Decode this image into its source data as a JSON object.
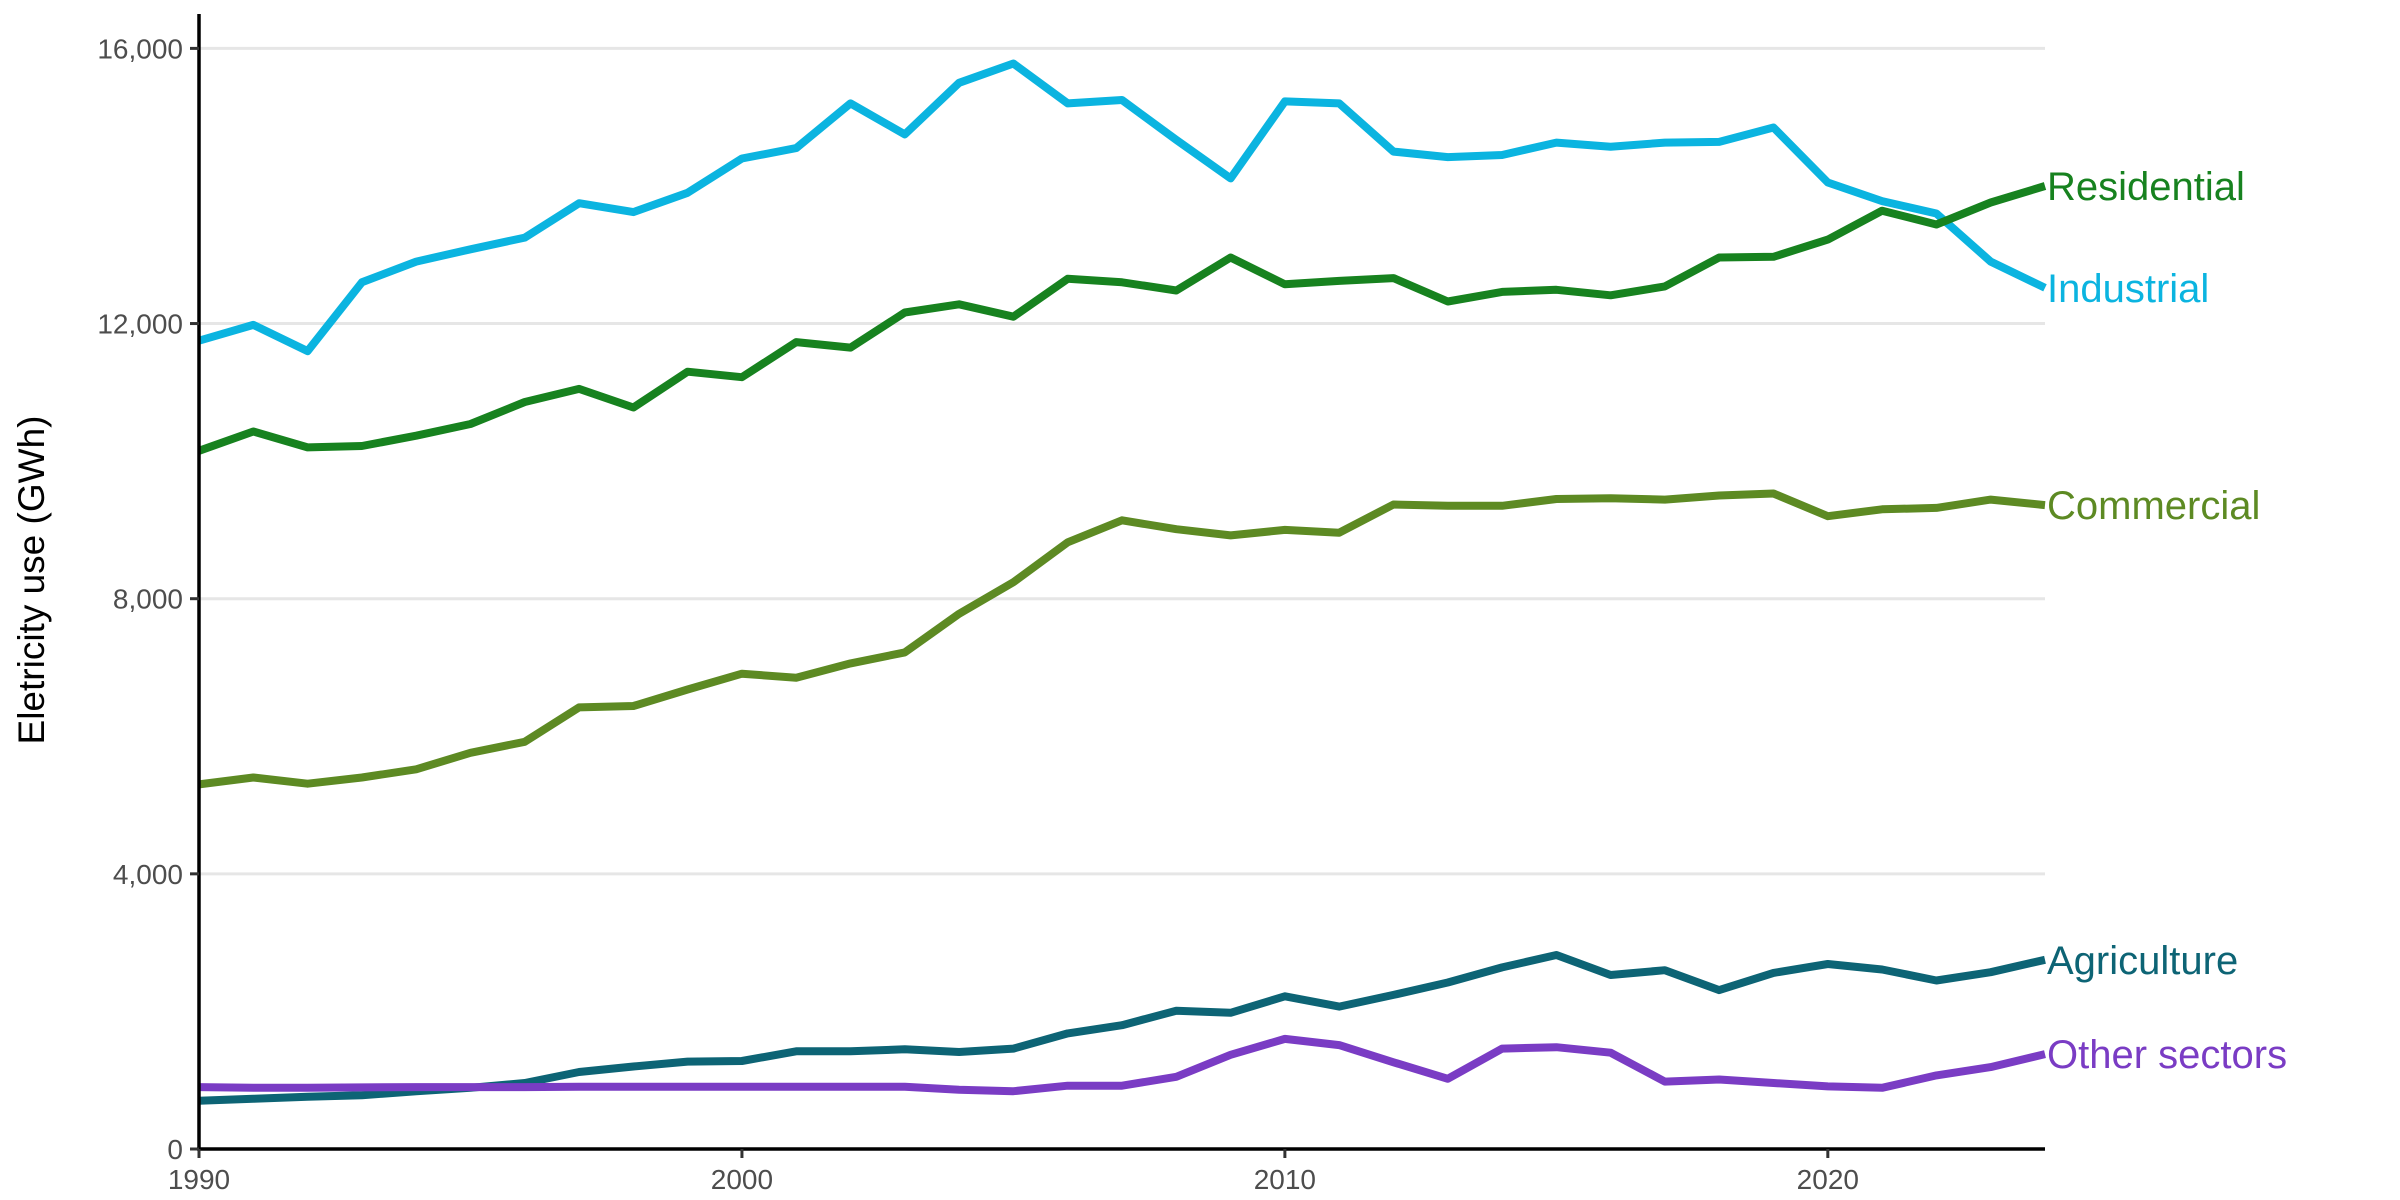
{
  "chart_data": {
    "type": "line",
    "title": "",
    "xlabel": "",
    "ylabel": "Eletricity use (GWh)",
    "xlim": [
      1990,
      2024
    ],
    "ylim": [
      0,
      16500
    ],
    "grid": true,
    "legend": "direct-labels-right",
    "x_ticks": [
      {
        "value": 1990,
        "label": "1990"
      },
      {
        "value": 2000,
        "label": "2000"
      },
      {
        "value": 2010,
        "label": "2010"
      },
      {
        "value": 2020,
        "label": "2020"
      }
    ],
    "y_ticks": [
      {
        "value": 0,
        "label": "0"
      },
      {
        "value": 4000,
        "label": "4,000"
      },
      {
        "value": 8000,
        "label": "8,000"
      },
      {
        "value": 12000,
        "label": "12,000"
      },
      {
        "value": 16000,
        "label": "16,000"
      }
    ],
    "x": [
      1990,
      1991,
      1992,
      1993,
      1994,
      1995,
      1996,
      1997,
      1998,
      1999,
      2000,
      2001,
      2002,
      2003,
      2004,
      2005,
      2006,
      2007,
      2008,
      2009,
      2010,
      2011,
      2012,
      2013,
      2014,
      2015,
      2016,
      2017,
      2018,
      2019,
      2020,
      2021,
      2022,
      2023,
      2024
    ],
    "series": [
      {
        "name": "Industrial",
        "color": "#0bb4e0",
        "values": [
          11750,
          11980,
          11600,
          12600,
          12900,
          13080,
          13250,
          13750,
          13620,
          13900,
          14400,
          14550,
          15200,
          14750,
          15500,
          15780,
          15200,
          15250,
          14670,
          14110,
          15230,
          15200,
          14500,
          14420,
          14450,
          14630,
          14570,
          14630,
          14640,
          14850,
          14050,
          13780,
          13600,
          12900,
          12520
        ]
      },
      {
        "name": "Residential",
        "color": "#17821f",
        "values": [
          10150,
          10430,
          10200,
          10220,
          10370,
          10540,
          10860,
          11050,
          10780,
          11300,
          11220,
          11730,
          11650,
          12160,
          12280,
          12100,
          12650,
          12600,
          12480,
          12960,
          12570,
          12620,
          12660,
          12320,
          12460,
          12490,
          12410,
          12540,
          12960,
          12970,
          13220,
          13640,
          13440,
          13760,
          14000
        ]
      },
      {
        "name": "Commercial",
        "color": "#5d8a23",
        "values": [
          5300,
          5400,
          5310,
          5400,
          5520,
          5760,
          5920,
          6420,
          6440,
          6680,
          6910,
          6850,
          7060,
          7220,
          7780,
          8240,
          8820,
          9140,
          9010,
          8920,
          9000,
          8960,
          9370,
          9350,
          9350,
          9450,
          9460,
          9440,
          9500,
          9530,
          9200,
          9300,
          9320,
          9440,
          9360
        ]
      },
      {
        "name": "Agriculture",
        "color": "#0d6475",
        "values": [
          700,
          730,
          760,
          780,
          840,
          890,
          960,
          1120,
          1200,
          1270,
          1280,
          1420,
          1420,
          1450,
          1410,
          1460,
          1680,
          1800,
          2010,
          1980,
          2220,
          2070,
          2240,
          2420,
          2640,
          2820,
          2530,
          2600,
          2310,
          2560,
          2690,
          2610,
          2450,
          2570,
          2750
        ]
      },
      {
        "name": "Other sectors",
        "color": "#7a3cc4",
        "values": [
          900,
          890,
          890,
          895,
          900,
          900,
          900,
          905,
          905,
          905,
          905,
          905,
          905,
          905,
          860,
          840,
          920,
          920,
          1050,
          1370,
          1600,
          1510,
          1260,
          1020,
          1460,
          1480,
          1400,
          980,
          1010,
          960,
          910,
          890,
          1070,
          1190,
          1380
        ]
      }
    ]
  }
}
